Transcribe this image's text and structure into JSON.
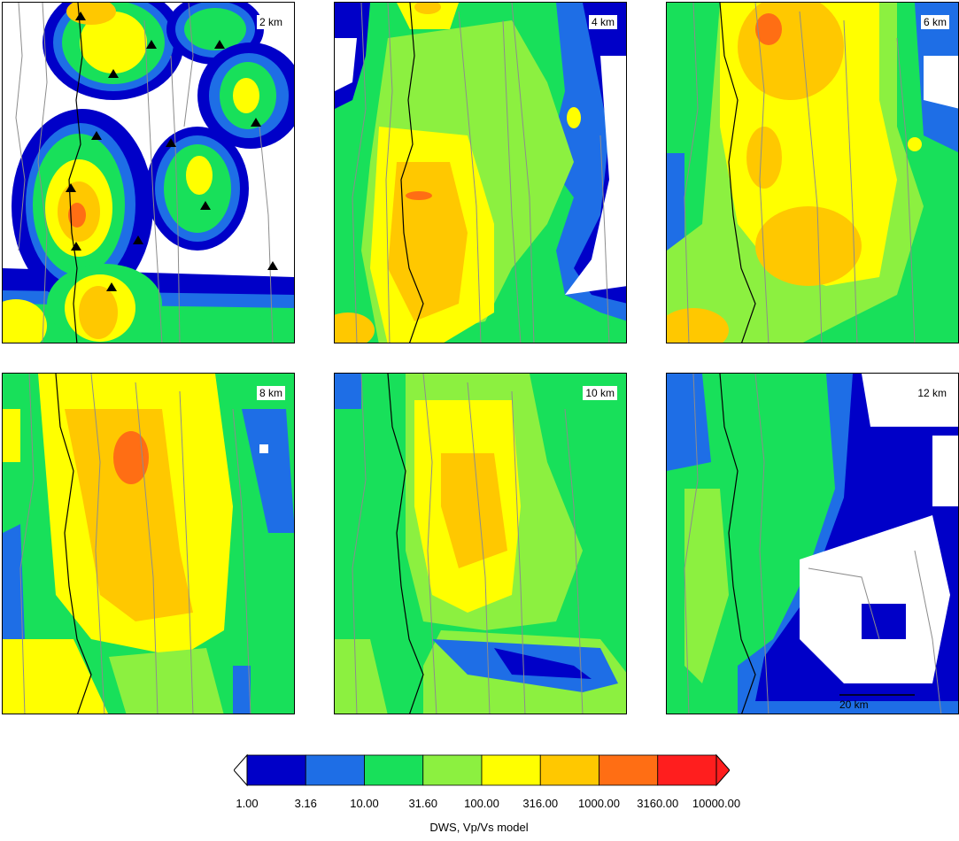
{
  "panels": [
    {
      "id": "p1",
      "depth": "2 km"
    },
    {
      "id": "p2",
      "depth": "4 km"
    },
    {
      "id": "p3",
      "depth": "6 km"
    },
    {
      "id": "p4",
      "depth": "8 km"
    },
    {
      "id": "p5",
      "depth": "10 km"
    },
    {
      "id": "p6",
      "depth": "12 km"
    }
  ],
  "scale_bar": "20 km",
  "colorbar": {
    "title": "DWS, Vp/Vs model",
    "ticks": [
      "1.00",
      "3.16",
      "10.00",
      "31.60",
      "100.00",
      "316.00",
      "1000.00",
      "3160.00",
      "10000.00"
    ],
    "colors": [
      "#0000c8",
      "#1e6ee6",
      "#18e05a",
      "#8cf040",
      "#ffff00",
      "#ffc800",
      "#ff6e14",
      "#ff1e1e"
    ],
    "low_color": "#ffffff",
    "high_color": "#ff1e1e"
  },
  "palette": {
    "none": "#ffffff",
    "darkblue": "#0000c8",
    "blue": "#1e6ee6",
    "green": "#18e05a",
    "lime": "#8cf040",
    "yellow": "#ffff00",
    "orange": "#ffc800",
    "darkorange": "#ff6e14",
    "red": "#ff1e1e",
    "fault_line": "#8c8c8c",
    "coast_line": "#000000",
    "station": "#000000"
  }
}
